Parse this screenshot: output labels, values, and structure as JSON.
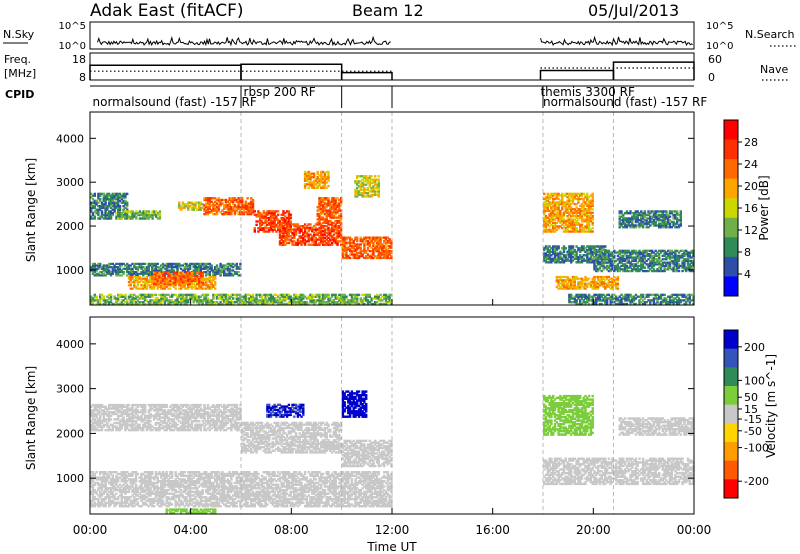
{
  "header": {
    "site": "Adak East (fitACF)",
    "beam": "Beam 12",
    "date": "05/Jul/2013"
  },
  "panel_labels": {
    "nsky": "N.Sky",
    "nsearch": "N.Search",
    "freq_line1": "Freq.",
    "freq_line2": "[MHz]",
    "nave": "Nave",
    "cpid": "CPID"
  },
  "noise_axis": {
    "left_ticks": [
      "10^5",
      "10^0"
    ],
    "right_ticks": [
      "10^5",
      "10^0"
    ]
  },
  "freq_axis": {
    "left_ticks": [
      "18",
      "8"
    ],
    "right_ticks": [
      "60",
      "0"
    ]
  },
  "cpid_labels": [
    {
      "text": "normalsound (fast) -157 RF",
      "hour": 0.1,
      "row": 1
    },
    {
      "text": "rbsp 200 RF",
      "hour": 6.1,
      "row": 0
    },
    {
      "text": "themis 3300 RF",
      "hour": 17.9,
      "row": 0
    },
    {
      "text": "normalsound (fast) -157 RF",
      "hour": 18.0,
      "row": 1
    }
  ],
  "colors": {
    "power_scale": [
      "#0000ff",
      "#2e4fa8",
      "#2e8b57",
      "#6fb04a",
      "#ccd700",
      "#ffa500",
      "#ff6a00",
      "#ff3000",
      "#ff0000"
    ],
    "velocity_scale": [
      "#0000cd",
      "#3355bb",
      "#2e8b57",
      "#7ccd3c",
      "#c8c8c8",
      "#ffd400",
      "#ff9c00",
      "#ff5a00",
      "#ff0000"
    ],
    "ground_scatter": "#c8c8c8"
  },
  "chart_data": [
    {
      "type": "heatmap",
      "name": "power",
      "ylabel": "Slant Range [km]",
      "yticks": [
        1000,
        2000,
        3000,
        4000
      ],
      "ylim": [
        200,
        4600
      ],
      "xlim": [
        0,
        24
      ],
      "colorbar": {
        "label": "Power [dB]",
        "ticks": [
          4,
          8,
          12,
          16,
          20,
          24,
          28
        ],
        "range": [
          0,
          32
        ]
      },
      "regions": [
        {
          "t0": 0.0,
          "t1": 1.5,
          "r0": 2200,
          "r1": 2800,
          "value": 8
        },
        {
          "t0": 1.0,
          "t1": 2.8,
          "r0": 2200,
          "r1": 2400,
          "value": 12
        },
        {
          "t0": 0.0,
          "t1": 12.0,
          "r0": 250,
          "r1": 500,
          "value": 12
        },
        {
          "t0": 0.0,
          "t1": 6.0,
          "r0": 900,
          "r1": 1200,
          "value": 8
        },
        {
          "t0": 1.5,
          "t1": 5.0,
          "r0": 600,
          "r1": 900,
          "value": 20
        },
        {
          "t0": 2.5,
          "t1": 4.5,
          "r0": 700,
          "r1": 1000,
          "value": 24
        },
        {
          "t0": 4.5,
          "t1": 6.5,
          "r0": 2300,
          "r1": 2700,
          "value": 24
        },
        {
          "t0": 3.5,
          "t1": 4.5,
          "r0": 2400,
          "r1": 2600,
          "value": 16
        },
        {
          "t0": 6.5,
          "t1": 8.0,
          "r0": 1900,
          "r1": 2400,
          "value": 26
        },
        {
          "t0": 7.5,
          "t1": 10.0,
          "r0": 1600,
          "r1": 2100,
          "value": 26
        },
        {
          "t0": 9.0,
          "t1": 10.0,
          "r0": 2100,
          "r1": 2700,
          "value": 24
        },
        {
          "t0": 10.0,
          "t1": 12.0,
          "r0": 1300,
          "r1": 1800,
          "value": 24
        },
        {
          "t0": 8.5,
          "t1": 9.5,
          "r0": 2900,
          "r1": 3300,
          "value": 20
        },
        {
          "t0": 10.5,
          "t1": 11.5,
          "r0": 2700,
          "r1": 3200,
          "value": 16
        },
        {
          "t0": 18.0,
          "t1": 20.0,
          "r0": 1900,
          "r1": 2800,
          "value": 20
        },
        {
          "t0": 18.0,
          "t1": 20.5,
          "r0": 1200,
          "r1": 1600,
          "value": 8
        },
        {
          "t0": 18.5,
          "t1": 21.0,
          "r0": 600,
          "r1": 900,
          "value": 20
        },
        {
          "t0": 19.0,
          "t1": 24.0,
          "r0": 250,
          "r1": 500,
          "value": 8
        },
        {
          "t0": 21.0,
          "t1": 23.5,
          "r0": 2000,
          "r1": 2400,
          "value": 8
        },
        {
          "t0": 20.0,
          "t1": 24.0,
          "r0": 1000,
          "r1": 1500,
          "value": 8
        }
      ]
    },
    {
      "type": "heatmap",
      "name": "velocity",
      "xlabel": "Time UT",
      "ylabel": "Slant Range [km]",
      "yticks": [
        1000,
        2000,
        3000,
        4000
      ],
      "ylim": [
        200,
        4600
      ],
      "xlim": [
        0,
        24
      ],
      "xticks": [
        "00:00",
        "04:00",
        "08:00",
        "12:00",
        "16:00",
        "20:00",
        "00:00"
      ],
      "colorbar": {
        "label": "Velocity [m s^-1]",
        "ticks": [
          200,
          100,
          50,
          15,
          -15,
          -50,
          -100,
          -200
        ],
        "range": [
          -250,
          250
        ]
      },
      "regions": [
        {
          "t0": 0.0,
          "t1": 6.0,
          "r0": 2100,
          "r1": 2700,
          "value": 0
        },
        {
          "t0": 0.0,
          "t1": 12.0,
          "r0": 400,
          "r1": 1200,
          "value": 0
        },
        {
          "t0": 6.0,
          "t1": 10.0,
          "r0": 1600,
          "r1": 2300,
          "value": 0
        },
        {
          "t0": 10.0,
          "t1": 12.0,
          "r0": 1300,
          "r1": 1900,
          "value": 0
        },
        {
          "t0": 10.0,
          "t1": 11.0,
          "r0": 2400,
          "r1": 3000,
          "value": 220
        },
        {
          "t0": 7.0,
          "t1": 8.5,
          "r0": 2400,
          "r1": 2700,
          "value": 200
        },
        {
          "t0": 3.0,
          "t1": 5.0,
          "r0": 250,
          "r1": 350,
          "value": 50
        },
        {
          "t0": 18.0,
          "t1": 20.0,
          "r0": 2000,
          "r1": 2900,
          "value": 50
        },
        {
          "t0": 18.0,
          "t1": 24.0,
          "r0": 900,
          "r1": 1500,
          "value": 0
        },
        {
          "t0": 21.0,
          "t1": 24.0,
          "r0": 2000,
          "r1": 2400,
          "value": 0
        }
      ]
    }
  ],
  "time_axis": {
    "ticks": [
      "00:00",
      "04:00",
      "08:00",
      "12:00",
      "16:00",
      "20:00",
      "00:00"
    ],
    "label": "Time UT",
    "data_gap_hours": [
      12.0,
      17.9
    ],
    "cpid_change_hours": [
      6.0,
      10.0,
      12.0,
      18.0,
      20.8
    ]
  },
  "noise_trace": {
    "segments": [
      {
        "t0": 0.3,
        "t1": 12.0
      },
      {
        "t0": 17.9,
        "t1": 24.0
      }
    ]
  },
  "freq_trace": {
    "segments": [
      {
        "t0": 0.0,
        "t1": 6.0,
        "freq": 15.0
      },
      {
        "t0": 6.0,
        "t1": 10.0,
        "freq": 15.5
      },
      {
        "t0": 10.0,
        "t1": 12.0,
        "freq": 11.5
      },
      {
        "t0": 17.9,
        "t1": 20.8,
        "freq": 12.5
      },
      {
        "t0": 20.8,
        "t1": 24.0,
        "freq": 16.5
      }
    ],
    "nave_segments": [
      {
        "t0": 0.0,
        "t1": 12.0,
        "nave": 22
      },
      {
        "t0": 17.9,
        "t1": 24.0,
        "nave": 30
      }
    ]
  }
}
